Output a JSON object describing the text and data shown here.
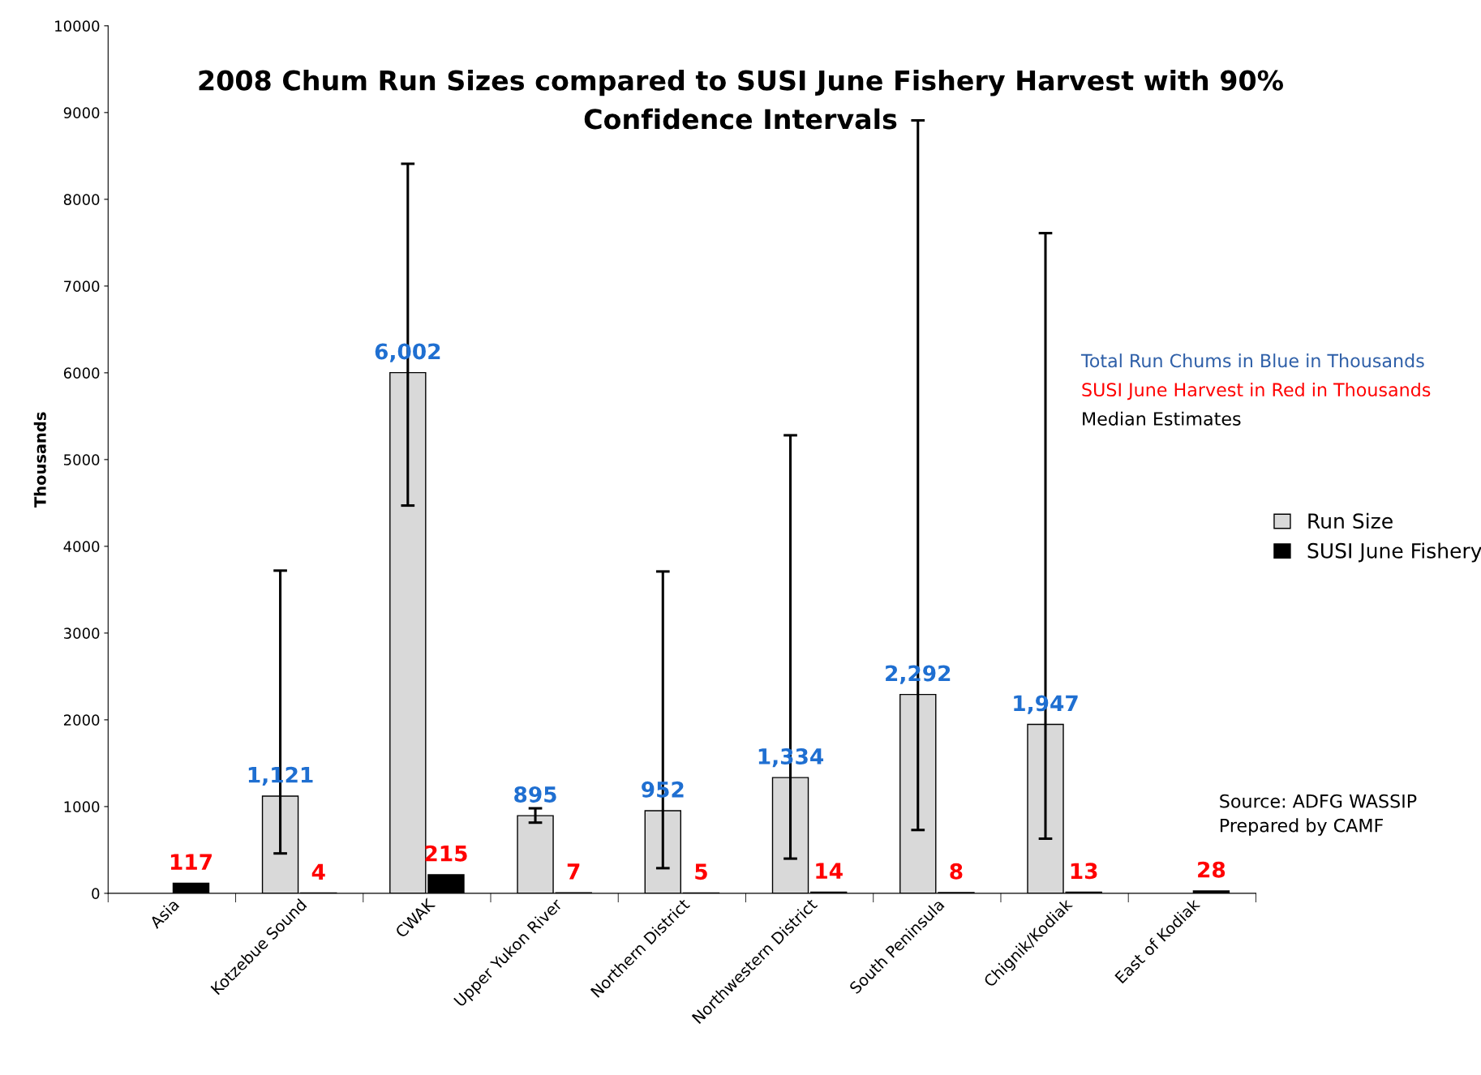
{
  "chart_data": {
    "type": "bar",
    "title": "2008 Chum Run Sizes compared to SUSI June Fishery Harvest with 90% Confidence Intervals",
    "ylabel": "Thousands",
    "categories": [
      "Asia",
      "Kotzebue Sound",
      "CWAK",
      "Upper Yukon River",
      "Northern District",
      "Northwestern District",
      "South Peninsula",
      "Chignik/Kodiak",
      "East of Kodiak"
    ],
    "series": [
      {
        "name": "Run Size",
        "color": "#d9d9d9",
        "values": [
          null,
          1121,
          6002,
          895,
          952,
          1334,
          2292,
          1947,
          null
        ],
        "errors": [
          null,
          [
            460,
            3720
          ],
          [
            4470,
            8410
          ],
          [
            815,
            980
          ],
          [
            290,
            3710
          ],
          [
            400,
            5280
          ],
          [
            730,
            8910
          ],
          [
            630,
            7610
          ],
          null
        ],
        "value_labels": [
          null,
          "1,121",
          "6,002",
          "895",
          "952",
          "1,334",
          "2,292",
          "1,947",
          null
        ]
      },
      {
        "name": "SUSI June Fishery",
        "color": "#000000",
        "values": [
          117,
          4,
          215,
          7,
          5,
          14,
          8,
          13,
          28
        ],
        "value_labels": [
          "117",
          "4",
          "215",
          "7",
          "5",
          "14",
          "8",
          "13",
          "28"
        ]
      }
    ],
    "ylim": [
      0,
      10000
    ],
    "yticks": [
      0,
      1000,
      2000,
      3000,
      4000,
      5000,
      6000,
      7000,
      8000,
      9000,
      10000
    ],
    "grid": false,
    "legend": "right",
    "annotations": [
      "Total Run Chums in Blue in Thousands",
      "SUSI June Harvest in Red in Thousands",
      "Median Estimates",
      "Source: ADFG WASSIP\nPrepared by CAMF"
    ]
  }
}
